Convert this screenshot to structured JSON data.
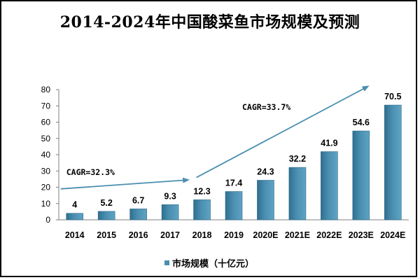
{
  "title": "2014-2024年中国酸菜鱼市场规模及预测",
  "colors": {
    "bar": "#4a8fb0",
    "bar_edge": "#2e6a88",
    "arrow": "#4a8fb0"
  },
  "chart_data": {
    "type": "bar",
    "title": "2014-2024年中国酸菜鱼市场规模及预测",
    "categories": [
      "2014",
      "2015",
      "2016",
      "2017",
      "2018",
      "2019",
      "2020E",
      "2021E",
      "2022E",
      "2023E",
      "2024E"
    ],
    "series": [
      {
        "name": "市场规模（十亿元）",
        "values": [
          4,
          5.2,
          6.7,
          9.3,
          12.3,
          17.4,
          24.3,
          32.2,
          41.9,
          54.6,
          70.5
        ]
      }
    ],
    "value_labels": [
      "4",
      "5.2",
      "6.7",
      "9.3",
      "12.3",
      "17.4",
      "24.3",
      "32.2",
      "41.9",
      "54.6",
      "70.5"
    ],
    "ylim": [
      0,
      80
    ],
    "yticks": [
      0,
      10,
      20,
      30,
      40,
      50,
      60,
      70,
      80
    ],
    "xlabel": "",
    "ylabel": "",
    "grid": false,
    "legend_position": "bottom",
    "annotations": [
      {
        "text": "CAGR=32.3%",
        "from_category": "2014",
        "to_category": "2017"
      },
      {
        "text": "CAGR=33.7%",
        "from_category": "2018",
        "to_category": "2024E"
      }
    ]
  }
}
